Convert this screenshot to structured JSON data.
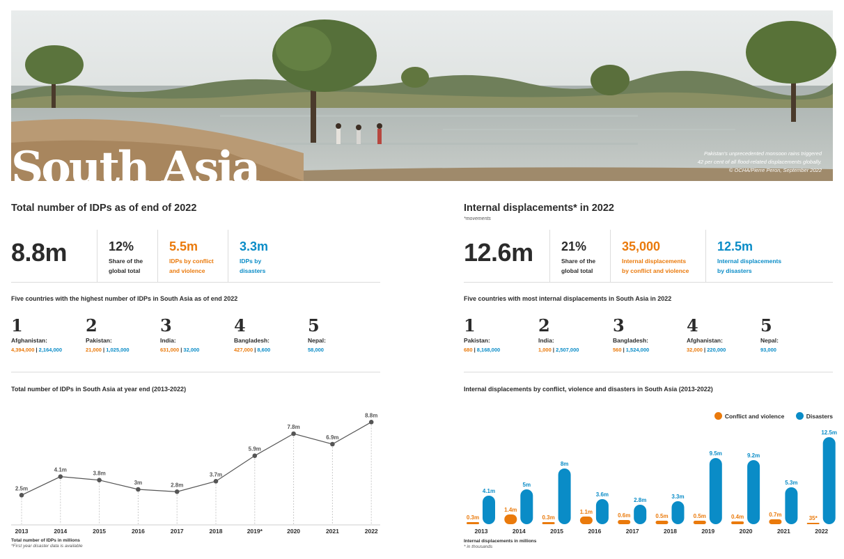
{
  "hero": {
    "title": "South Asia",
    "caption_line1": "Pakistan's unprecedented monsoon rains triggered",
    "caption_line2": "42 per cent of all flood-related displacements globally.",
    "caption_line3": "© OCHA/Pierre Peron, September 2022"
  },
  "colors": {
    "conflict": "#ea7a0c",
    "disasters": "#0a8cc7",
    "text": "#2b2b2b"
  },
  "left": {
    "title": "Total number of IDPs as of end of 2022",
    "main_value": "8.8m",
    "kpis": [
      {
        "value": "12%",
        "label1": "Share of the",
        "label2": "global total"
      },
      {
        "value": "5.5m",
        "label1": "IDPs by conflict",
        "label2": "and violence"
      },
      {
        "value": "3.3m",
        "label1": "IDPs by",
        "label2": "disasters"
      }
    ],
    "top5_title": "Five countries with the highest number of IDPs in South Asia as of end 2022",
    "top5": [
      {
        "rank": "1",
        "country": "Afghanistan:",
        "conflict": "4,394,000",
        "disasters": "2,164,000"
      },
      {
        "rank": "2",
        "country": "Pakistan:",
        "conflict": "21,000",
        "disasters": "1,025,000"
      },
      {
        "rank": "3",
        "country": "India:",
        "conflict": "631,000",
        "disasters": "32,000"
      },
      {
        "rank": "4",
        "country": "Bangladesh:",
        "conflict": "427,000",
        "disasters": "8,600"
      },
      {
        "rank": "5",
        "country": "Nepal:",
        "conflict": "",
        "disasters": "58,000"
      }
    ],
    "chart_title": "Total number of IDPs in South Asia at year end (2013-2022)",
    "note1": "Total number of IDPs in millions",
    "note2": "*First year disaster data is available"
  },
  "right": {
    "title": "Internal displacements* in 2022",
    "subtitle": "*movements",
    "main_value": "12.6m",
    "kpis": [
      {
        "value": "21%",
        "label1": "Share of the",
        "label2": "global total"
      },
      {
        "value": "35,000",
        "label1": "Internal displacements",
        "label2": "by conflict and violence"
      },
      {
        "value": "12.5m",
        "label1": "Internal displacements",
        "label2": "by disasters"
      }
    ],
    "top5_title": "Five countries with most internal displacements in South Asia in 2022",
    "top5": [
      {
        "rank": "1",
        "country": "Pakistan:",
        "conflict": "680",
        "disasters": "8,168,000"
      },
      {
        "rank": "2",
        "country": "India:",
        "conflict": "1,000",
        "disasters": "2,507,000"
      },
      {
        "rank": "3",
        "country": "Bangladesh:",
        "conflict": "560",
        "disasters": "1,524,000"
      },
      {
        "rank": "4",
        "country": "Afghanistan:",
        "conflict": "32,000",
        "disasters": "220,000"
      },
      {
        "rank": "5",
        "country": "Nepal:",
        "conflict": "",
        "disasters": "93,000"
      }
    ],
    "chart_title": "Internal displacements by conflict, violence and disasters in South Asia (2013-2022)",
    "legend_conflict": "Conflict and violence",
    "legend_disasters": "Disasters",
    "note1": "Internal displacements in millions",
    "note2": "* in thousands"
  },
  "chart_data": [
    {
      "type": "line",
      "title": "Total number of IDPs in South Asia at year end (2013-2022)",
      "categories": [
        "2013",
        "2014",
        "2015",
        "2016",
        "2017",
        "2018",
        "2019*",
        "2020",
        "2021",
        "2022"
      ],
      "values": [
        2.5,
        4.1,
        3.8,
        3.0,
        2.8,
        3.7,
        5.9,
        7.8,
        6.9,
        8.8
      ],
      "labels": [
        "2.5m",
        "4.1m",
        "3.8m",
        "3m",
        "2.8m",
        "3.7m",
        "5.9m",
        "7.8m",
        "6.9m",
        "8.8m"
      ],
      "ylim": [
        0,
        9
      ],
      "grid": false
    },
    {
      "type": "bar",
      "title": "Internal displacements by conflict, violence and disasters in South Asia (2013-2022)",
      "categories": [
        "2013",
        "2014",
        "2015",
        "2016",
        "2017",
        "2018",
        "2019",
        "2020",
        "2021",
        "2022"
      ],
      "series": [
        {
          "name": "Conflict and violence",
          "color": "#ea7a0c",
          "values": [
            0.3,
            1.4,
            0.3,
            1.1,
            0.6,
            0.5,
            0.5,
            0.4,
            0.7,
            0.035
          ],
          "labels": [
            "0.3m",
            "1.4m",
            "0.3m",
            "1.1m",
            "0.6m",
            "0.5m",
            "0.5m",
            "0.4m",
            "0.7m",
            "35*"
          ]
        },
        {
          "name": "Disasters",
          "color": "#0a8cc7",
          "values": [
            4.1,
            5.0,
            8.0,
            3.6,
            2.8,
            3.3,
            9.5,
            9.2,
            5.3,
            12.5
          ],
          "labels": [
            "4.1m",
            "5m",
            "8m",
            "3.6m",
            "2.8m",
            "3.3m",
            "9.5m",
            "9.2m",
            "5.3m",
            "12.5m"
          ]
        }
      ],
      "ylim": [
        0,
        12.5
      ],
      "legend": "top-right",
      "grid": false
    }
  ]
}
